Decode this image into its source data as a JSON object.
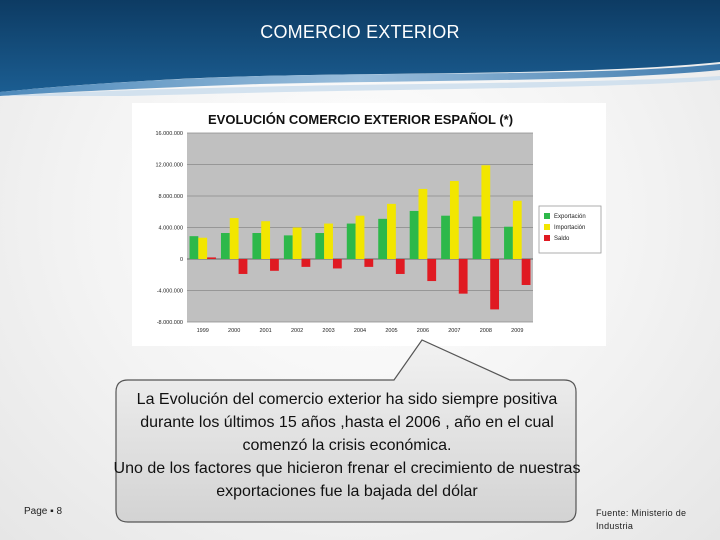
{
  "slide": {
    "title": "COMERCIO EXTERIOR",
    "page_label": "Page",
    "page_number": "8",
    "source": "Fuente: Ministerio de Industria"
  },
  "callout": {
    "line1": "La Evolución del comercio exterior  ha sido siempre positiva durante los últimos 15 años ,hasta el 2006 , año en el cual comenzó la crisis económica.",
    "line2": "Uno de los factores que hicieron frenar el crecimiento de nuestras exportaciones fue la bajada del dólar"
  },
  "chart_data": {
    "type": "bar",
    "title": "EVOLUCIÓN COMERCIO EXTERIOR ESPAÑOL (*)",
    "categories": [
      "1999",
      "2000",
      "2001",
      "2002",
      "2003",
      "2004",
      "2005",
      "2006",
      "2007",
      "2008",
      "2009"
    ],
    "series": [
      {
        "name": "Exportación",
        "color": "#2db84a",
        "values": [
          2900000,
          3300000,
          3300000,
          3000000,
          3300000,
          4500000,
          5100000,
          6100000,
          5500000,
          5400000,
          4100000
        ]
      },
      {
        "name": "Importación",
        "color": "#f2e600",
        "values": [
          2700000,
          5200000,
          4800000,
          4000000,
          4500000,
          5500000,
          7000000,
          8900000,
          9900000,
          11900000,
          7400000
        ]
      },
      {
        "name": "Saldo",
        "color": "#e01a22",
        "values": [
          200000,
          -1900000,
          -1500000,
          -1000000,
          -1200000,
          -1000000,
          -1900000,
          -2800000,
          -4400000,
          -6400000,
          -3300000
        ]
      }
    ],
    "yticks": [
      "16.000.000",
      "12.000.000",
      "8.000.000",
      "4.000.000",
      "0",
      "-4.000.000",
      "-8.000.000"
    ],
    "ytick_values": [
      16000000,
      12000000,
      8000000,
      4000000,
      0,
      -4000000,
      -8000000
    ],
    "ylim": [
      -8000000,
      16000000
    ],
    "grid": true,
    "legend": "right"
  }
}
